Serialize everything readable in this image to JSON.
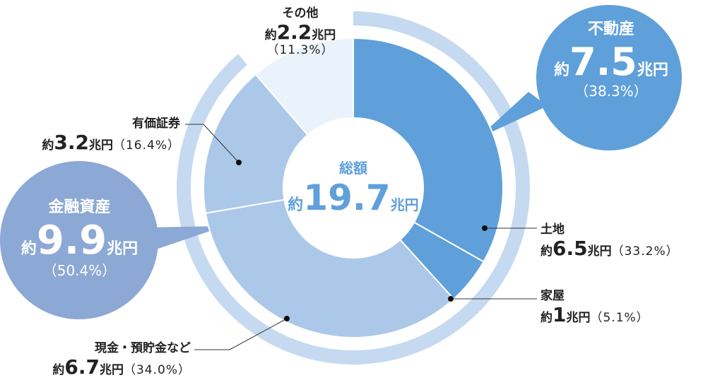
{
  "chart_data": {
    "type": "pie",
    "donut": true,
    "center": {
      "title": "総額",
      "prefix": "約",
      "value": "19.7",
      "unit": "兆円"
    },
    "slices": [
      {
        "name": "土地",
        "value": 6.5,
        "percent": 33.2,
        "value_label": "6.5",
        "percent_label": "（33.2%）",
        "color": "#5fa0da"
      },
      {
        "name": "家屋",
        "value": 1,
        "percent": 5.1,
        "value_label": "1",
        "percent_label": "（5.1%）",
        "color": "#5fa0da"
      },
      {
        "name": "現金・預貯金など",
        "value": 6.7,
        "percent": 34.0,
        "value_label": "6.7",
        "percent_label": "（34.0%）",
        "color": "#abc8e9"
      },
      {
        "name": "有価証券",
        "value": 3.2,
        "percent": 16.4,
        "value_label": "3.2",
        "percent_label": "（16.4%）",
        "color": "#abc8e9"
      },
      {
        "name": "その他",
        "value": 2.2,
        "percent": 11.3,
        "value_label": "2.2",
        "percent_label": "（11.3%）",
        "color": "#eaf3fc"
      }
    ],
    "groups": [
      {
        "name": "不動産",
        "value_label": "7.5",
        "percent": 38.3,
        "percent_label": "（38.3%）",
        "color": "#5fa0da"
      },
      {
        "name": "金融資産",
        "value_label": "9.9",
        "percent": 50.4,
        "percent_label": "（50.4%）",
        "color": "#8ca8d4"
      }
    ],
    "ring_color": "#c5d9f0",
    "prefix": "約",
    "unit": "兆円"
  }
}
